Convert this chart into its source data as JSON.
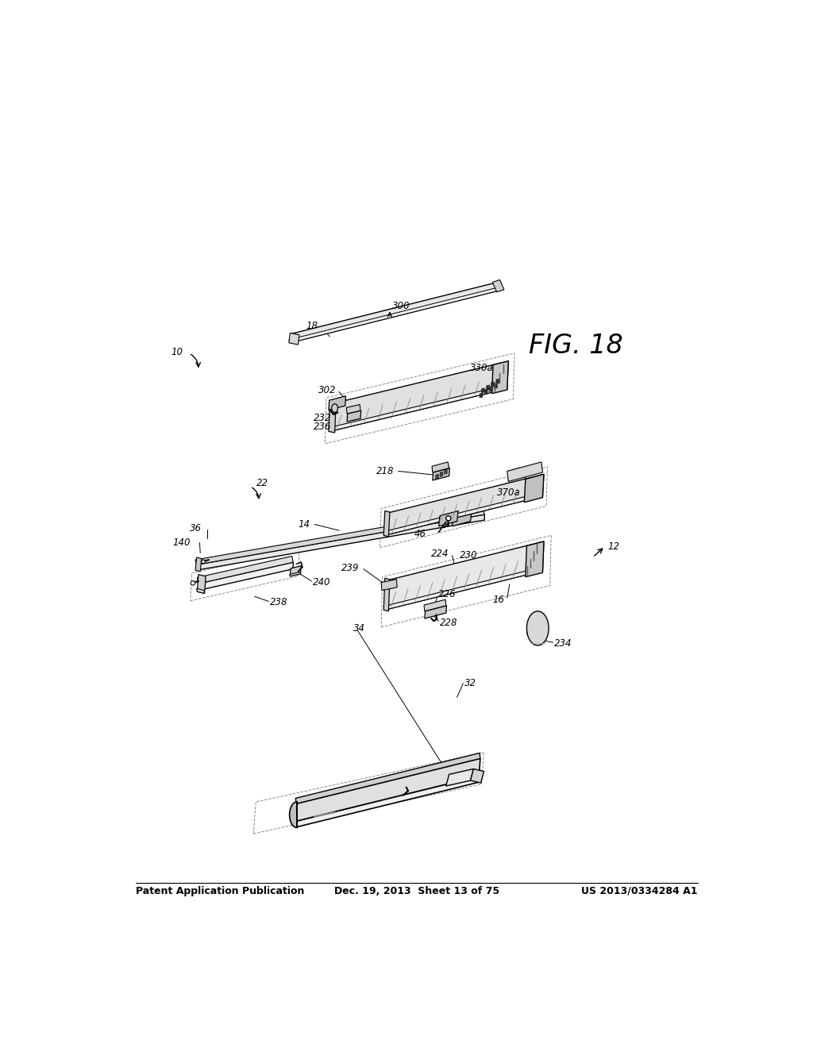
{
  "header_left": "Patent Application Publication",
  "header_middle": "Dec. 19, 2013  Sheet 13 of 75",
  "header_right": "US 2013/0334284 A1",
  "figure_label": "FIG. 18",
  "background_color": "#ffffff"
}
